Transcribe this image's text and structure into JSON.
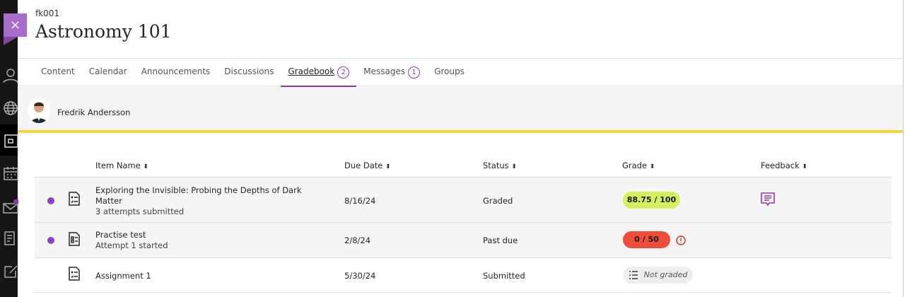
{
  "course": {
    "code": "fk001",
    "title": "Astronomy 101",
    "close_label": "×"
  },
  "tabs": [
    {
      "label": "Content"
    },
    {
      "label": "Calendar"
    },
    {
      "label": "Announcements"
    },
    {
      "label": "Discussions"
    },
    {
      "label": "Gradebook",
      "badge": "2"
    },
    {
      "label": "Messages",
      "badge": "1"
    },
    {
      "label": "Groups"
    }
  ],
  "student": {
    "name": "Fredrik Andersson"
  },
  "columns": {
    "item": "Item Name",
    "due": "Due Date",
    "status": "Status",
    "grade": "Grade",
    "feedback": "Feedback",
    "sort_glyph": "⬍"
  },
  "rows": [
    {
      "name_1": "Exploring the Invisible: Probing the Depths of Dark",
      "name_2": "Matter",
      "sub": "3 attempts submitted",
      "due": "8/16/24",
      "status": "Graded",
      "grade": "88.75 / 100",
      "grade_color": "#d4ef5e",
      "unread": true,
      "feedback": true
    },
    {
      "name_1": "Practise test",
      "sub": "Attempt 1 started",
      "due": "2/8/24",
      "status": "Past due",
      "grade": "0 / 50",
      "grade_color": "#ef4d3a",
      "unread": true,
      "alert": true
    },
    {
      "name_1": "Assignment 1",
      "due": "5/30/24",
      "status": "Submitted",
      "grade": "Not graded",
      "grade_color": "#eeeeee",
      "unread": false
    }
  ],
  "colors": {
    "accent": "#8b3aab",
    "highlight": "#f2d93a"
  }
}
